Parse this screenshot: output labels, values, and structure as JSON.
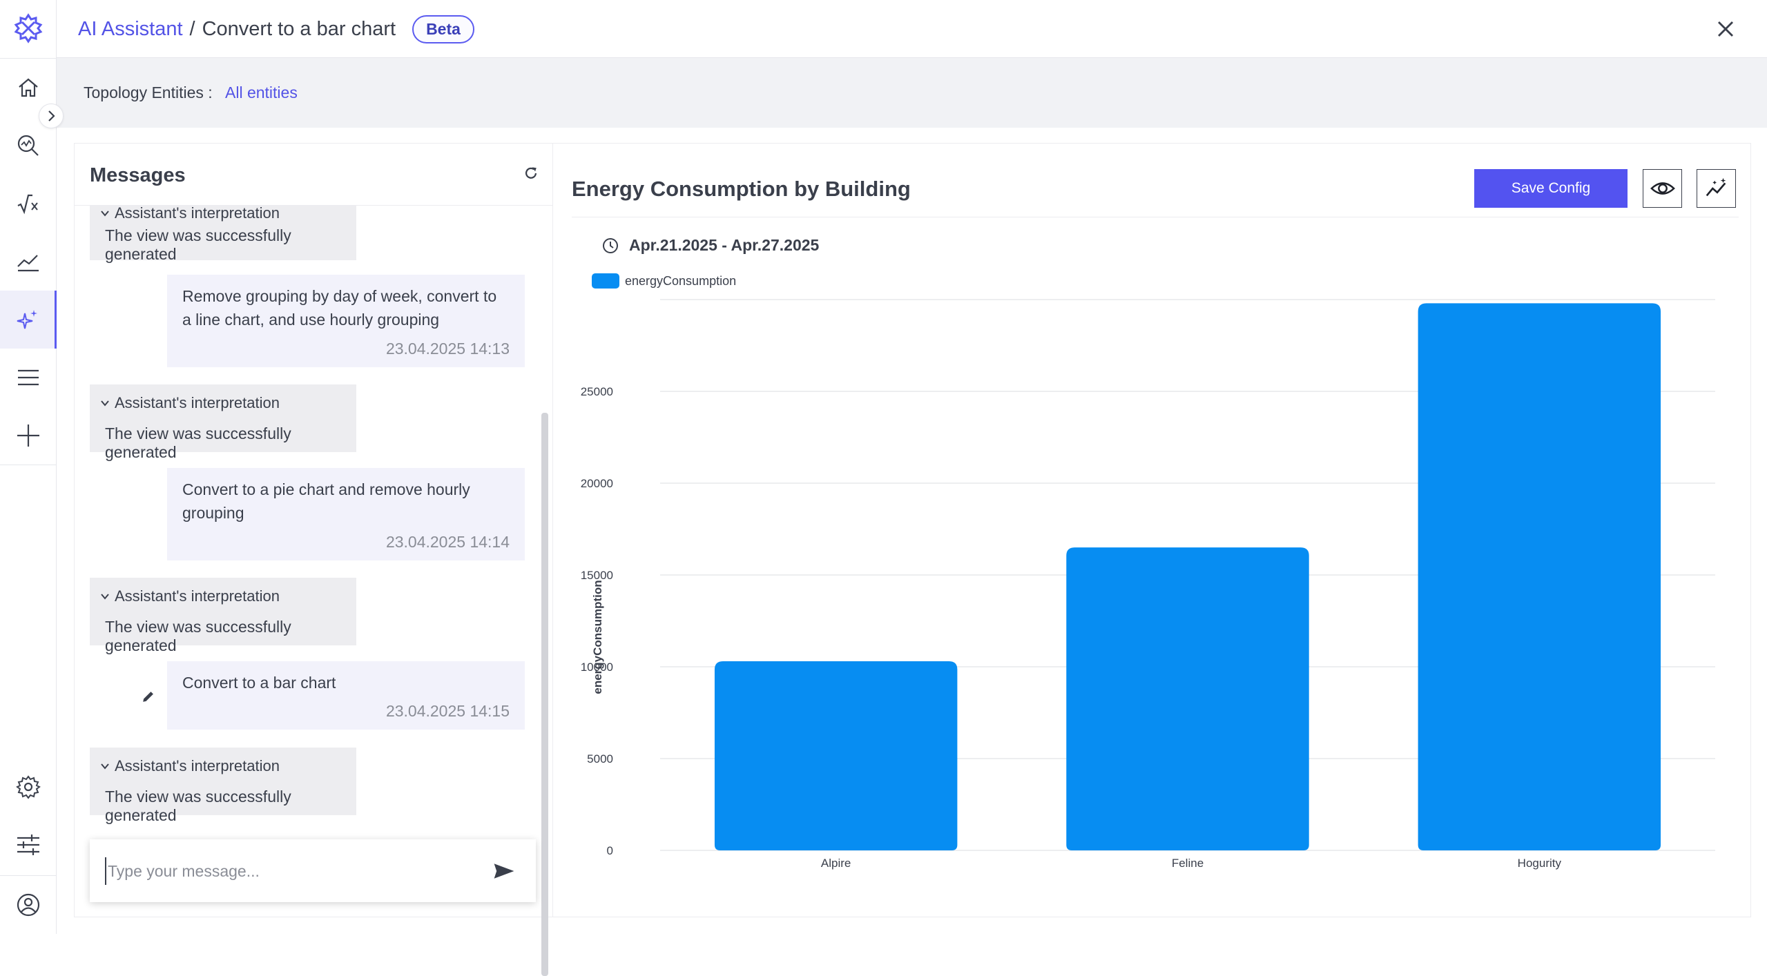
{
  "header": {
    "breadcrumb_link": "AI Assistant",
    "breadcrumb_sep": "/",
    "breadcrumb_current": "Convert to a bar chart",
    "badge": "Beta"
  },
  "topology": {
    "label": "Topology Entities :",
    "value": "All entities"
  },
  "rail": {
    "icons": [
      "logo-icon",
      "home-icon",
      "search-analytics-icon",
      "formula-icon",
      "trend-icon",
      "ai-sparkle-icon",
      "menu-icon",
      "plus-icon",
      "settings-icon",
      "sliders-icon",
      "user-icon"
    ]
  },
  "messages": {
    "title": "Messages",
    "items": [
      {
        "role": "assistant",
        "head": "Assistant's interpretation",
        "body": "The view was successfully generated"
      },
      {
        "role": "user",
        "text": "Remove grouping by day of week, convert to a line chart, and use hourly grouping",
        "time": "23.04.2025 14:13"
      },
      {
        "role": "assistant",
        "head": "Assistant's interpretation",
        "body": "The view was successfully generated"
      },
      {
        "role": "user",
        "text": "Convert to a pie chart and remove hourly grouping",
        "time": "23.04.2025 14:14"
      },
      {
        "role": "assistant",
        "head": "Assistant's interpretation",
        "body": "The view was successfully generated"
      },
      {
        "role": "user",
        "text": "Convert to a bar chart",
        "time": "23.04.2025 14:15"
      },
      {
        "role": "assistant",
        "head": "Assistant's interpretation",
        "body": "The view was successfully generated"
      }
    ],
    "input_placeholder": "Type your message..."
  },
  "chart_panel": {
    "title": "Energy Consumption by Building",
    "save_label": "Save Config",
    "date_range": "Apr.21.2025 - Apr.27.2025"
  },
  "chart_data": {
    "type": "bar",
    "categories": [
      "Alpire",
      "Feline",
      "Hogurity"
    ],
    "series": [
      {
        "name": "energyConsumption",
        "values": [
          10300,
          16500,
          29800
        ],
        "color": "#078df2"
      }
    ],
    "title": "",
    "xlabel": "",
    "ylabel": "energyConsumption",
    "ylim": [
      0,
      30000
    ],
    "yticks": [
      0,
      5000,
      10000,
      15000,
      20000,
      25000
    ],
    "grid": true,
    "legend": "top-left"
  },
  "colors": {
    "accent": "#5353f0",
    "link": "#5353e6",
    "bar": "#078df2"
  }
}
